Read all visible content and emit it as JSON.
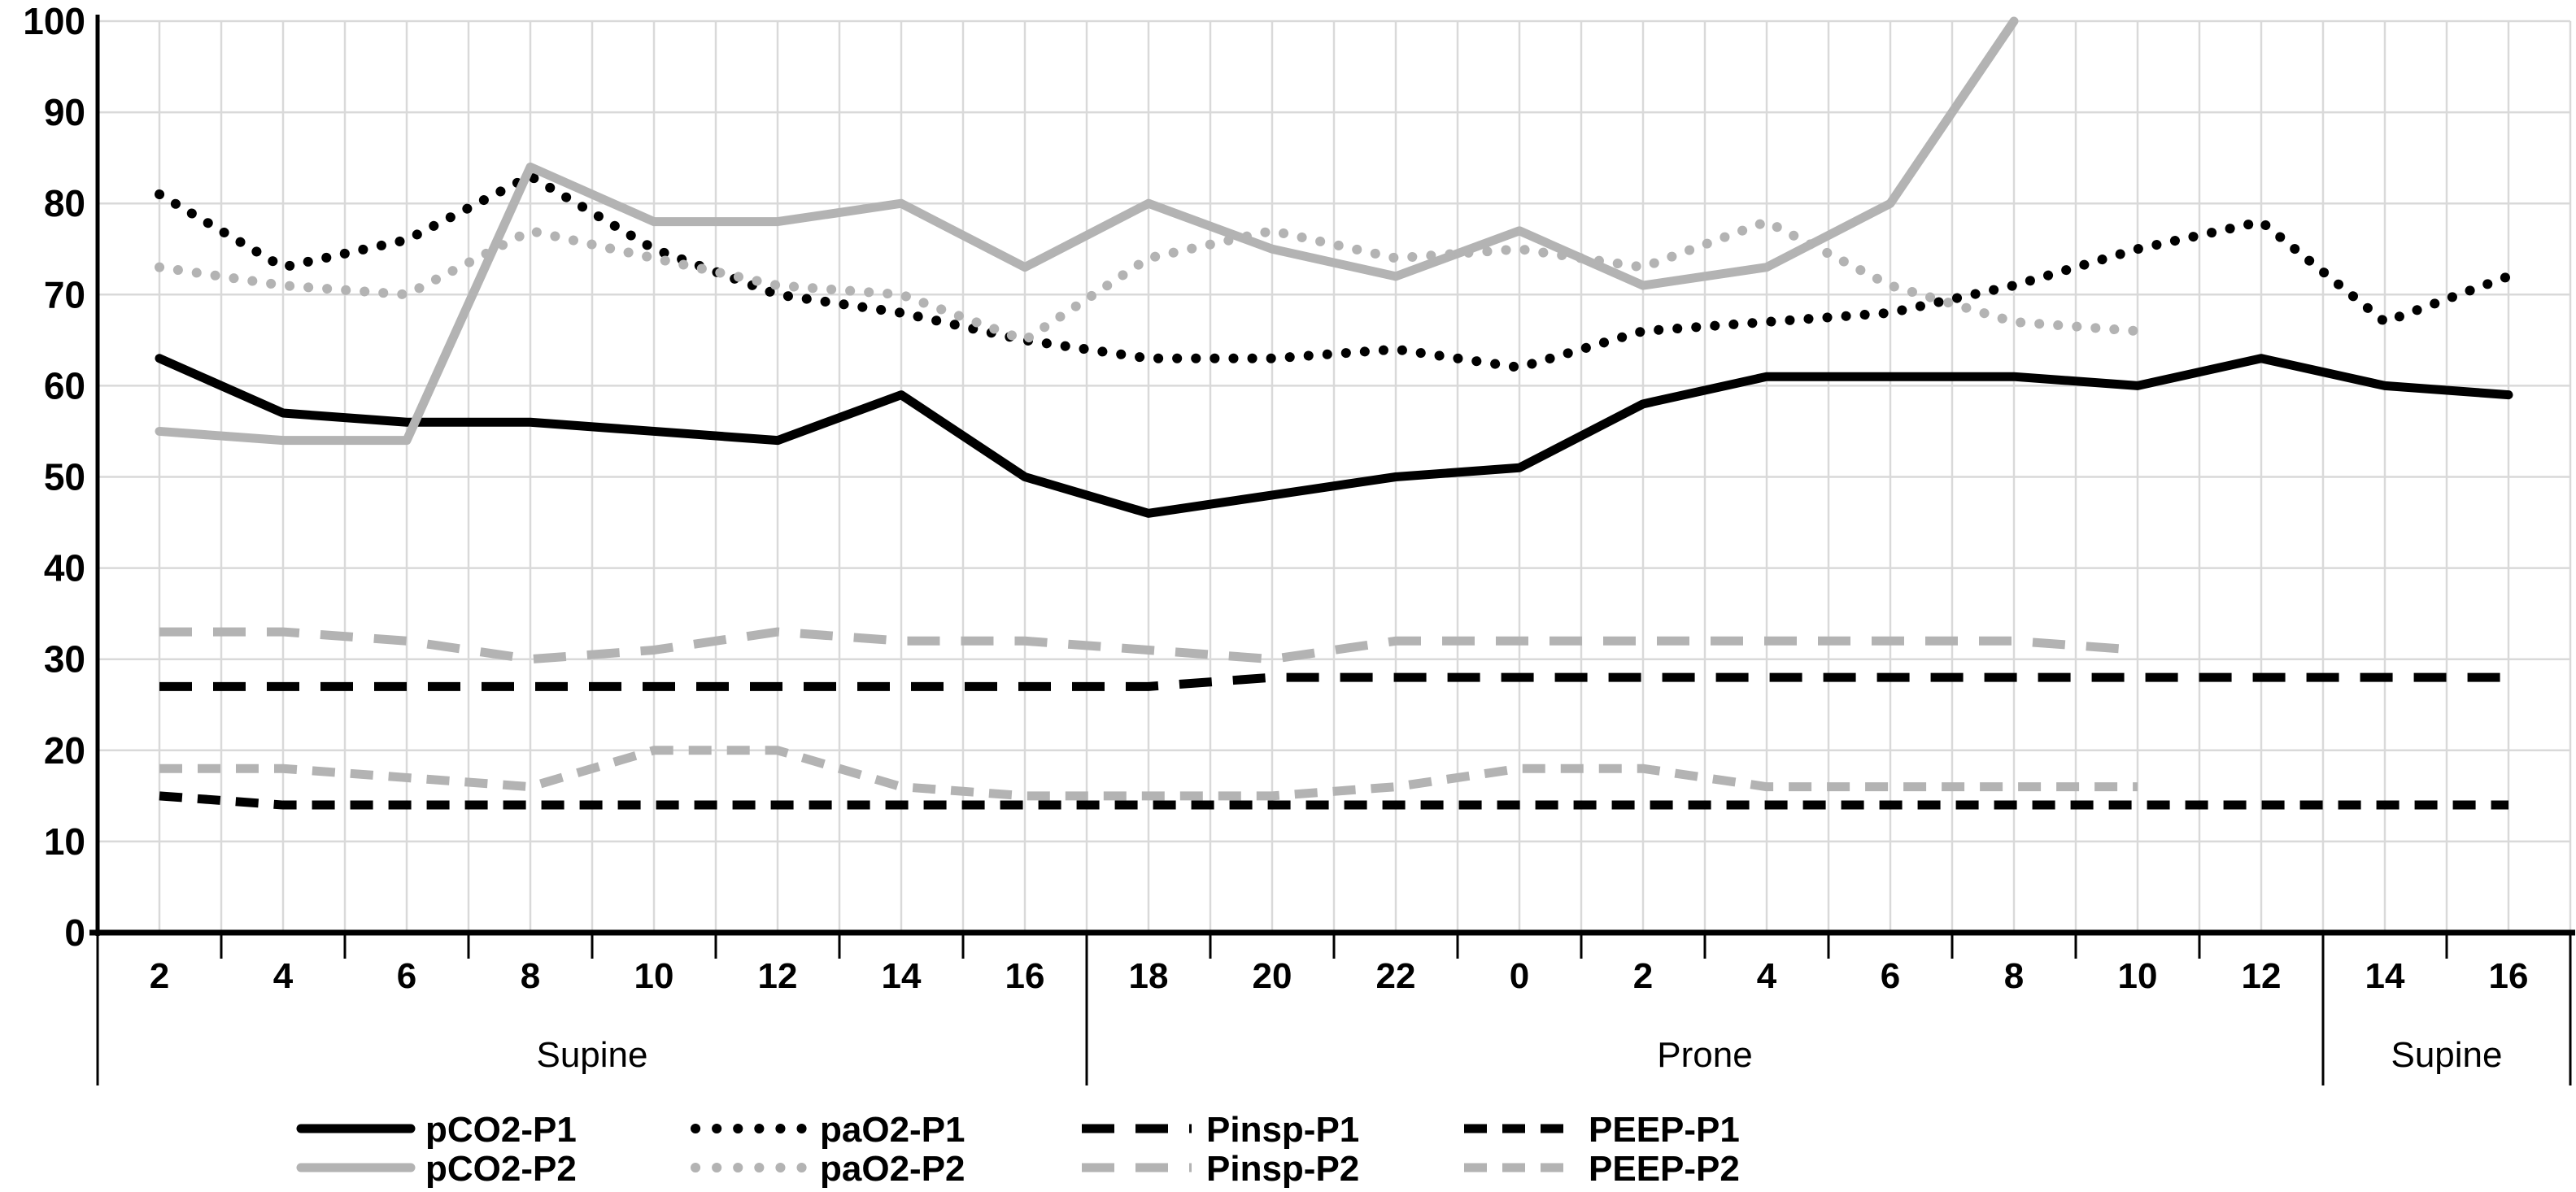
{
  "chart_data": {
    "type": "line",
    "title": "",
    "xlabel": "",
    "ylabel": "",
    "ylim": [
      0,
      100
    ],
    "ytick_step": 10,
    "grid": true,
    "legend_position": "bottom",
    "categories": [
      "2",
      "4",
      "6",
      "8",
      "10",
      "12",
      "14",
      "16",
      "18",
      "20",
      "22",
      "0",
      "2",
      "4",
      "6",
      "8",
      "10",
      "12",
      "14",
      "16"
    ],
    "x_groups": [
      {
        "label": "Supine",
        "from_slot": 0,
        "to_slot": 8
      },
      {
        "label": "Prone",
        "from_slot": 8,
        "to_slot": 18
      },
      {
        "label": "Supine",
        "from_slot": 18,
        "to_slot": 20
      }
    ],
    "y_tick_labels": [
      "0",
      "10",
      "20",
      "30",
      "40",
      "50",
      "60",
      "70",
      "80",
      "90",
      "100"
    ],
    "series": [
      {
        "name": "pCO2-P1",
        "color": "#000000",
        "style": "solid",
        "values": [
          63,
          57,
          56,
          56,
          55,
          54,
          59,
          50,
          46,
          48,
          50,
          51,
          58,
          61,
          61,
          61,
          60,
          63,
          60,
          59
        ]
      },
      {
        "name": "paO2-P1",
        "color": "#000000",
        "style": "dotted",
        "values": [
          81,
          73,
          76,
          83,
          75,
          70,
          68,
          65,
          63,
          63,
          64,
          62,
          66,
          67,
          68,
          71,
          75,
          78,
          67,
          72
        ]
      },
      {
        "name": "Pinsp-P1",
        "color": "#000000",
        "style": "dash",
        "values": [
          27,
          27,
          27,
          27,
          27,
          27,
          27,
          27,
          27,
          28,
          28,
          28,
          28,
          28,
          28,
          28,
          28,
          28,
          28,
          28
        ]
      },
      {
        "name": "PEEP-P1",
        "color": "#000000",
        "style": "shortdash",
        "values": [
          15,
          14,
          14,
          14,
          14,
          14,
          14,
          14,
          14,
          14,
          14,
          14,
          14,
          14,
          14,
          14,
          14,
          14,
          14,
          14
        ]
      },
      {
        "name": "pCO2-P2",
        "color": "#b3b3b3",
        "style": "solid",
        "values": [
          55,
          54,
          54,
          84,
          78,
          78,
          80,
          73,
          80,
          75,
          72,
          77,
          71,
          73,
          80,
          100
        ]
      },
      {
        "name": "paO2-P2",
        "color": "#b3b3b3",
        "style": "dotted",
        "values": [
          73,
          71,
          70,
          77,
          74,
          71,
          70,
          65,
          74,
          77,
          74,
          75,
          73,
          78,
          71,
          67,
          66
        ]
      },
      {
        "name": "Pinsp-P2",
        "color": "#b3b3b3",
        "style": "dash",
        "values": [
          33,
          33,
          32,
          30,
          31,
          33,
          32,
          32,
          31,
          30,
          32,
          32,
          32,
          32,
          32,
          32,
          31
        ]
      },
      {
        "name": "PEEP-P2",
        "color": "#b3b3b3",
        "style": "shortdash",
        "values": [
          18,
          18,
          17,
          16,
          20,
          20,
          16,
          15,
          15,
          15,
          16,
          18,
          18,
          16,
          16,
          16,
          16
        ]
      }
    ]
  },
  "colors": {
    "background": "#ffffff",
    "gridline": "#d9d9d9",
    "axis": "#000000",
    "series_black": "#000000",
    "series_gray": "#b3b3b3"
  },
  "legend": {
    "rows": [
      [
        "pCO2-P1",
        "paO2-P1",
        "Pinsp-P1",
        "PEEP-P1"
      ],
      [
        "pCO2-P2",
        "paO2-P2",
        "Pinsp-P2",
        "PEEP-P2"
      ]
    ]
  }
}
